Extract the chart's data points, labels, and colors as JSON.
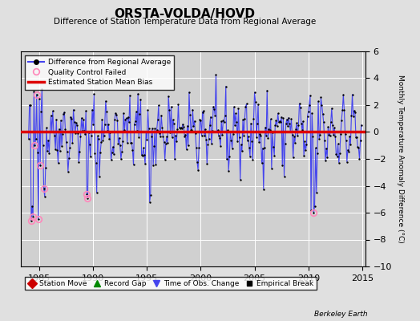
{
  "title": "ORSTA-VOLDA/HOVD",
  "subtitle": "Difference of Station Temperature Data from Regional Average",
  "ylabel": "Monthly Temperature Anomaly Difference (°C)",
  "xlabel_ticks": [
    1985,
    1990,
    1995,
    2000,
    2005,
    2010,
    2015
  ],
  "xlim": [
    1983.3,
    2015.3
  ],
  "ylim": [
    -10,
    6
  ],
  "yticks": [
    -10,
    -8,
    -6,
    -4,
    -2,
    0,
    2,
    4,
    6
  ],
  "bias_value": 0.05,
  "background_color": "#e0e0e0",
  "plot_bg_color": "#d0d0d0",
  "grid_color": "#ffffff",
  "line_color": "#4444ee",
  "dot_color": "#000000",
  "bias_color": "#dd0000",
  "qc_color": "#ff88bb",
  "watermark": "Berkeley Earth",
  "seed": 42,
  "n_points": 372
}
